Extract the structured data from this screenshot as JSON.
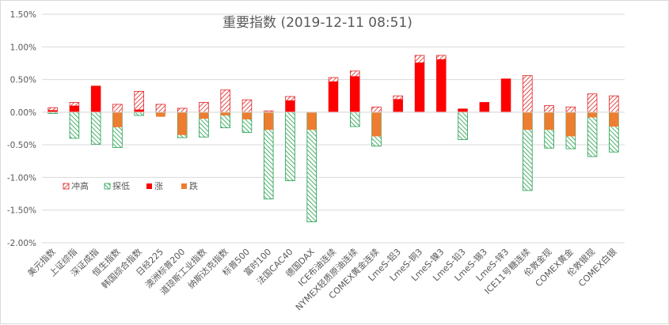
{
  "chart_data": {
    "type": "bar",
    "title": "重要指数 (2019-12-11 08:51)",
    "ylim": [
      -2.0,
      1.5
    ],
    "yticks": [
      "1.50%",
      "1.00%",
      "0.50%",
      "0.00%",
      "-0.50%",
      "-1.00%",
      "-1.50%",
      "-2.00%"
    ],
    "ytick_values": [
      1.5,
      1.0,
      0.5,
      0.0,
      -0.5,
      -1.0,
      -1.5,
      -2.0
    ],
    "grid": true,
    "legend_position": "left-middle",
    "categories": [
      "美元指数",
      "上证综指",
      "深证成指",
      "恒生指数",
      "韩国综合指数",
      "日经225",
      "澳洲标普200",
      "道琼斯工业指数",
      "纳斯达克指数",
      "标普500",
      "富时100",
      "法国CAC40",
      "德国DAX",
      "ICE布油连续",
      "NYMEX轻质原油连续",
      "COMEX黄金连续",
      "LmeS-铝3",
      "LmeS-铜3",
      "LmeS-镍3",
      "LmeS-铅3",
      "LmeS-锡3",
      "LmeS-锌3",
      "ICE11号糖连续",
      "伦敦金现",
      "COMEX黄金",
      "伦敦银现",
      "COMEX白银"
    ],
    "series": [
      {
        "name": "冲高",
        "color": "#e01f1f",
        "pattern": "hatch-red",
        "values": [
          0.07,
          0.15,
          0.4,
          0.12,
          0.32,
          0.12,
          0.06,
          0.15,
          0.34,
          0.19,
          0.02,
          0.24,
          0.0,
          0.53,
          0.63,
          0.08,
          0.25,
          0.87,
          0.87,
          0.05,
          0.15,
          0.51,
          0.56,
          0.1,
          0.08,
          0.28,
          0.25
        ]
      },
      {
        "name": "探低",
        "color": "#1e9e4a",
        "pattern": "hatch-green",
        "values": [
          -0.02,
          -0.4,
          -0.49,
          -0.54,
          -0.05,
          -0.02,
          -0.39,
          -0.38,
          -0.24,
          -0.31,
          -1.33,
          -1.05,
          -1.68,
          0.0,
          -0.22,
          -0.52,
          0.0,
          0.0,
          0.0,
          -0.42,
          0.0,
          0.0,
          -1.2,
          -0.55,
          -0.56,
          -0.68,
          -0.61
        ]
      },
      {
        "name": "涨",
        "color": "#ff0000",
        "pattern": "solid",
        "values": [
          0.03,
          0.1,
          0.4,
          0.0,
          0.04,
          0.0,
          0.0,
          0.0,
          0.0,
          0.0,
          0.0,
          0.18,
          0.0,
          0.47,
          0.55,
          0.0,
          0.2,
          0.76,
          0.81,
          0.05,
          0.15,
          0.51,
          0.0,
          0.0,
          0.0,
          0.0,
          0.0
        ]
      },
      {
        "name": "跌",
        "color": "#ed7d31",
        "pattern": "solid",
        "values": [
          0.0,
          0.0,
          0.0,
          -0.23,
          0.0,
          -0.07,
          -0.35,
          -0.1,
          -0.05,
          -0.11,
          -0.27,
          0.0,
          -0.27,
          0.0,
          0.0,
          -0.37,
          0.0,
          0.0,
          0.0,
          0.0,
          0.0,
          0.0,
          -0.27,
          -0.27,
          -0.37,
          -0.08,
          -0.22
        ]
      }
    ]
  }
}
